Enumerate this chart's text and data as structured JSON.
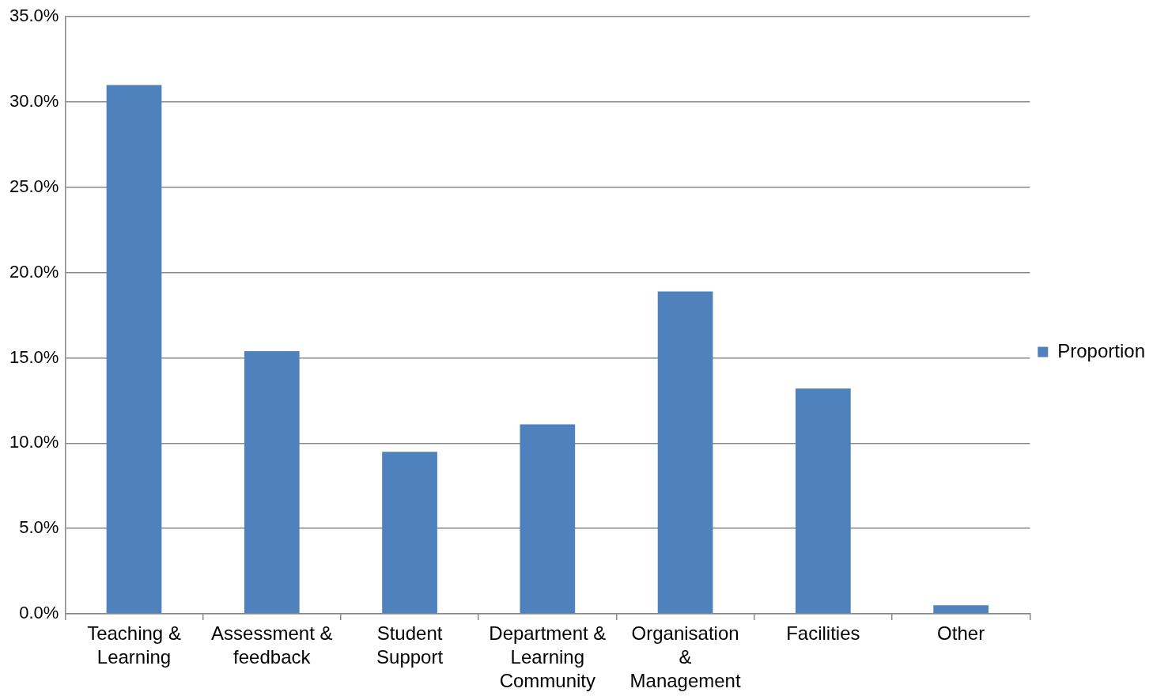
{
  "chart_data": {
    "type": "bar",
    "categories": [
      "Teaching & Learning",
      "Assessment & feedback",
      "Student Support",
      "Department & Learning Community",
      "Organisation & Management",
      "Facilities",
      "Other"
    ],
    "series": [
      {
        "name": "Proportion",
        "color": "#4f81bd",
        "values": [
          31.0,
          15.4,
          9.5,
          11.1,
          18.9,
          13.2,
          0.5
        ]
      }
    ],
    "ylim": [
      0,
      35
    ],
    "yticks": [
      {
        "value": 0,
        "label": "0.0%"
      },
      {
        "value": 5,
        "label": "5.0%"
      },
      {
        "value": 10,
        "label": "10.0%"
      },
      {
        "value": 15,
        "label": "15.0%"
      },
      {
        "value": 20,
        "label": "20.0%"
      },
      {
        "value": 25,
        "label": "25.0%"
      },
      {
        "value": 30,
        "label": "30.0%"
      },
      {
        "value": 35,
        "label": "35.0%"
      }
    ],
    "grid": "y",
    "legend": "right"
  }
}
